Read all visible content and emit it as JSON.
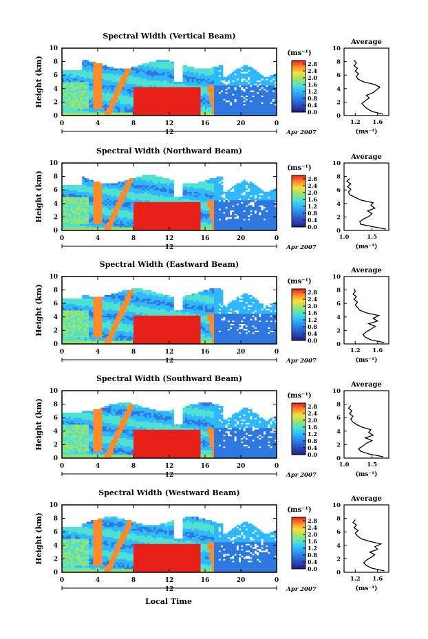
{
  "figure": {
    "xlabel_bottom": "Local Time",
    "colors": {
      "low": "#1e1e7a",
      "mid": "#30b0ff",
      "green": "#7fe07a",
      "high": "#ff3c1e",
      "white": "#ffffff"
    }
  },
  "chart_data": [
    {
      "type": "heatmap",
      "title": "Spectral Width (Vertical Beam)",
      "ylabel": "Height (km)",
      "xlabel": "",
      "x_ticks": [
        "0",
        "4",
        "8",
        "12",
        "16",
        "20",
        "0"
      ],
      "y_ticks": [
        "0",
        "2",
        "4",
        "6",
        "8",
        "10"
      ],
      "xlim": [
        0,
        24
      ],
      "ylim": [
        0,
        10
      ],
      "date_label": "12",
      "date_suffix": "Apr 2007",
      "colorbar": {
        "unit": "(ms⁻¹)",
        "ticks": [
          "0.0",
          "0.4",
          "0.8",
          "1.2",
          "1.6",
          "2.0",
          "2.4",
          "2.8"
        ],
        "range": [
          0,
          3.0
        ]
      },
      "average": {
        "title": "Average",
        "xlabel": "(ms⁻¹)",
        "x_ticks": [
          "1.2",
          "1.6"
        ],
        "xlim": [
          1.0,
          1.8
        ],
        "y_ticks": [
          "0",
          "2",
          "4",
          "6",
          "8",
          "10"
        ],
        "ylim": [
          0,
          10
        ],
        "profile": [
          [
            1.7,
            0.2
          ],
          [
            1.5,
            0.6
          ],
          [
            1.42,
            1.0
          ],
          [
            1.36,
            1.4
          ],
          [
            1.32,
            1.8
          ],
          [
            1.38,
            2.2
          ],
          [
            1.45,
            2.6
          ],
          [
            1.4,
            3.0
          ],
          [
            1.52,
            3.4
          ],
          [
            1.58,
            3.8
          ],
          [
            1.64,
            4.2
          ],
          [
            1.55,
            4.6
          ],
          [
            1.35,
            5.0
          ],
          [
            1.25,
            5.4
          ],
          [
            1.22,
            5.8
          ],
          [
            1.26,
            6.2
          ],
          [
            1.2,
            6.6
          ],
          [
            1.24,
            7.0
          ],
          [
            1.18,
            7.4
          ],
          [
            1.22,
            7.8
          ],
          [
            1.18,
            8.2
          ]
        ]
      }
    },
    {
      "type": "heatmap",
      "title": "Spectral Width (Northward Beam)",
      "ylabel": "Height (km)",
      "xlabel": "",
      "x_ticks": [
        "0",
        "4",
        "8",
        "12",
        "16",
        "20",
        "0"
      ],
      "y_ticks": [
        "0",
        "2",
        "4",
        "6",
        "8",
        "10"
      ],
      "xlim": [
        0,
        24
      ],
      "ylim": [
        0,
        10
      ],
      "date_label": "12",
      "date_suffix": "Apr 2007",
      "colorbar": {
        "unit": "(ms⁻¹)",
        "ticks": [
          "0.0",
          "0.4",
          "0.8",
          "1.2",
          "1.6",
          "2.0",
          "2.4",
          "2.8"
        ],
        "range": [
          0,
          3.0
        ]
      },
      "average": {
        "title": "Average",
        "xlabel": "(ms⁻¹)",
        "x_ticks": [
          "1.0",
          "1.5"
        ],
        "xlim": [
          1.0,
          1.8
        ],
        "y_ticks": [
          "0",
          "2",
          "4",
          "6",
          "8",
          "10"
        ],
        "ylim": [
          0,
          10
        ],
        "profile": [
          [
            1.75,
            0.2
          ],
          [
            1.55,
            0.5
          ],
          [
            1.3,
            0.9
          ],
          [
            1.28,
            1.3
          ],
          [
            1.35,
            1.7
          ],
          [
            1.45,
            2.1
          ],
          [
            1.5,
            2.5
          ],
          [
            1.42,
            2.9
          ],
          [
            1.55,
            3.3
          ],
          [
            1.48,
            3.7
          ],
          [
            1.52,
            4.1
          ],
          [
            1.3,
            4.5
          ],
          [
            1.2,
            4.9
          ],
          [
            1.1,
            5.3
          ],
          [
            1.08,
            5.7
          ],
          [
            1.12,
            6.1
          ],
          [
            1.06,
            6.5
          ],
          [
            1.12,
            6.9
          ],
          [
            1.05,
            7.3
          ],
          [
            1.1,
            7.7
          ]
        ]
      }
    },
    {
      "type": "heatmap",
      "title": "Spectral Width (Eastward Beam)",
      "ylabel": "Height (km)",
      "xlabel": "",
      "x_ticks": [
        "0",
        "4",
        "8",
        "12",
        "16",
        "20",
        "0"
      ],
      "y_ticks": [
        "0",
        "2",
        "4",
        "6",
        "8",
        "10"
      ],
      "xlim": [
        0,
        24
      ],
      "ylim": [
        0,
        10
      ],
      "date_label": "12",
      "date_suffix": "Apr 2007",
      "colorbar": {
        "unit": "(ms⁻¹)",
        "ticks": [
          "0.0",
          "0.4",
          "0.8",
          "1.2",
          "1.6",
          "2.0",
          "2.4",
          "2.8"
        ],
        "range": [
          0,
          3.0
        ]
      },
      "average": {
        "title": "Average",
        "xlabel": "(ms⁻¹)",
        "x_ticks": [
          "1.2",
          "1.6"
        ],
        "xlim": [
          1.0,
          1.8
        ],
        "y_ticks": [
          "0",
          "2",
          "4",
          "6",
          "8",
          "10"
        ],
        "ylim": [
          0,
          10
        ],
        "profile": [
          [
            1.72,
            0.2
          ],
          [
            1.48,
            0.6
          ],
          [
            1.38,
            1.0
          ],
          [
            1.34,
            1.4
          ],
          [
            1.4,
            1.8
          ],
          [
            1.48,
            2.2
          ],
          [
            1.56,
            2.6
          ],
          [
            1.44,
            3.0
          ],
          [
            1.6,
            3.4
          ],
          [
            1.52,
            3.8
          ],
          [
            1.62,
            4.2
          ],
          [
            1.4,
            4.6
          ],
          [
            1.28,
            5.0
          ],
          [
            1.24,
            5.4
          ],
          [
            1.2,
            5.8
          ],
          [
            1.24,
            6.2
          ],
          [
            1.18,
            6.6
          ],
          [
            1.22,
            7.0
          ],
          [
            1.16,
            7.4
          ],
          [
            1.2,
            7.8
          ],
          [
            1.18,
            8.2
          ]
        ]
      }
    },
    {
      "type": "heatmap",
      "title": "Spectral Width (Southward Beam)",
      "ylabel": "Height (km)",
      "xlabel": "",
      "x_ticks": [
        "0",
        "4",
        "8",
        "12",
        "16",
        "20",
        "0"
      ],
      "y_ticks": [
        "0",
        "2",
        "4",
        "6",
        "8",
        "10"
      ],
      "xlim": [
        0,
        24
      ],
      "ylim": [
        0,
        10
      ],
      "date_label": "12",
      "date_suffix": "Apr 2007",
      "colorbar": {
        "unit": "(ms⁻¹)",
        "ticks": [
          "0.0",
          "0.4",
          "0.8",
          "1.2",
          "1.6",
          "2.0",
          "2.4",
          "2.8"
        ],
        "range": [
          0,
          3.0
        ]
      },
      "average": {
        "title": "Average",
        "xlabel": "(ms⁻¹)",
        "x_ticks": [
          "1.0",
          "1.5"
        ],
        "xlim": [
          1.0,
          1.8
        ],
        "y_ticks": [
          "0",
          "2",
          "4",
          "6",
          "8",
          "10"
        ],
        "ylim": [
          0,
          10
        ],
        "profile": [
          [
            1.7,
            0.2
          ],
          [
            1.45,
            0.6
          ],
          [
            1.3,
            1.0
          ],
          [
            1.26,
            1.4
          ],
          [
            1.34,
            1.8
          ],
          [
            1.4,
            2.2
          ],
          [
            1.5,
            2.6
          ],
          [
            1.38,
            3.0
          ],
          [
            1.52,
            3.4
          ],
          [
            1.44,
            3.8
          ],
          [
            1.48,
            4.2
          ],
          [
            1.32,
            4.6
          ],
          [
            1.22,
            5.0
          ],
          [
            1.15,
            5.4
          ],
          [
            1.12,
            5.8
          ],
          [
            1.16,
            6.2
          ],
          [
            1.1,
            6.6
          ],
          [
            1.14,
            7.0
          ],
          [
            1.08,
            7.4
          ],
          [
            1.12,
            7.8
          ]
        ]
      }
    },
    {
      "type": "heatmap",
      "title": "Spectral Width (Westward Beam)",
      "ylabel": "Height (km)",
      "xlabel": "Local Time",
      "x_ticks": [
        "0",
        "4",
        "8",
        "12",
        "16",
        "20",
        "0"
      ],
      "y_ticks": [
        "0",
        "2",
        "4",
        "6",
        "8",
        "10"
      ],
      "xlim": [
        0,
        24
      ],
      "ylim": [
        0,
        10
      ],
      "date_label": "12",
      "date_suffix": "Apr 2007",
      "colorbar": {
        "unit": "(ms⁻¹)",
        "ticks": [
          "0.0",
          "0.4",
          "0.8",
          "1.2",
          "1.6",
          "2.0",
          "2.4",
          "2.8"
        ],
        "range": [
          0,
          3.0
        ]
      },
      "average": {
        "title": "Average",
        "xlabel": "(ms⁻¹)",
        "x_ticks": [
          "1.2",
          "1.6"
        ],
        "xlim": [
          1.0,
          1.8
        ],
        "y_ticks": [
          "0",
          "2",
          "4",
          "6",
          "8",
          "10"
        ],
        "ylim": [
          0,
          10
        ],
        "profile": [
          [
            1.72,
            0.2
          ],
          [
            1.5,
            0.6
          ],
          [
            1.4,
            1.0
          ],
          [
            1.35,
            1.4
          ],
          [
            1.4,
            1.8
          ],
          [
            1.48,
            2.2
          ],
          [
            1.55,
            2.6
          ],
          [
            1.46,
            3.0
          ],
          [
            1.6,
            3.4
          ],
          [
            1.55,
            3.8
          ],
          [
            1.66,
            4.2
          ],
          [
            1.45,
            4.6
          ],
          [
            1.3,
            5.0
          ],
          [
            1.24,
            5.4
          ],
          [
            1.2,
            5.8
          ],
          [
            1.25,
            6.2
          ],
          [
            1.18,
            6.6
          ],
          [
            1.22,
            7.0
          ],
          [
            1.16,
            7.4
          ],
          [
            1.2,
            7.8
          ]
        ]
      }
    }
  ]
}
